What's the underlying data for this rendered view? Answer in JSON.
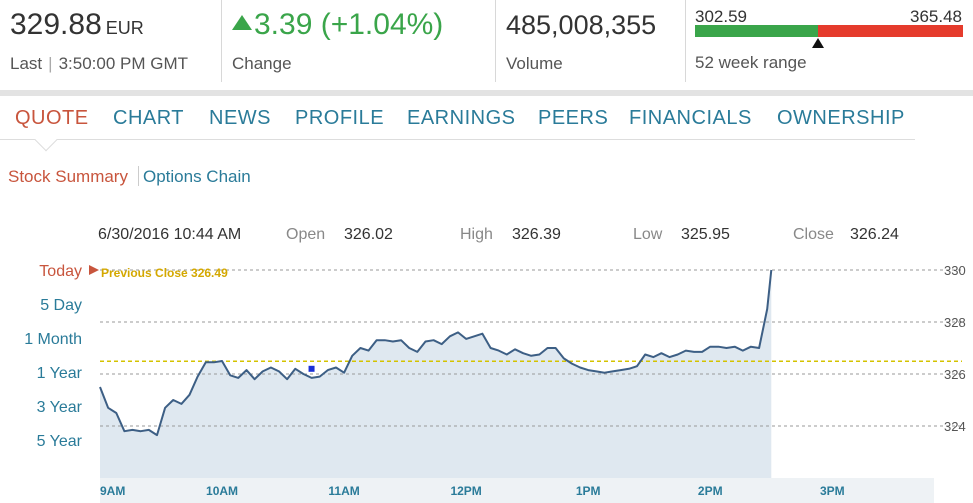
{
  "quote": {
    "price": "329.88",
    "currency": "EUR",
    "last_label": "Last",
    "time": "3:50:00 PM GMT",
    "change": "3.39 (+1.04%)",
    "change_label": "Change",
    "volume": "485,008,355",
    "volume_label": "Volume",
    "range_low": "302.59",
    "range_high": "365.48",
    "range_label": "52 week range",
    "range_position": 0.46,
    "colors": {
      "up": "#3aa54a",
      "down": "#e53b2c",
      "accent": "#c8553d",
      "link": "#2a7b99"
    }
  },
  "nav": {
    "tabs": [
      {
        "label": "QUOTE",
        "active": true
      },
      {
        "label": "CHART"
      },
      {
        "label": "NEWS"
      },
      {
        "label": "PROFILE"
      },
      {
        "label": "EARNINGS"
      },
      {
        "label": "PEERS"
      },
      {
        "label": "FINANCIALS"
      },
      {
        "label": "OWNERSHIP"
      }
    ],
    "subtabs": {
      "active": "Stock Summary",
      "other": "Options Chain"
    }
  },
  "info": {
    "datetime": "6/30/2016 10:44 AM",
    "open_label": "Open",
    "open": "326.02",
    "high_label": "High",
    "high": "326.39",
    "low_label": "Low",
    "low": "325.95",
    "close_label": "Close",
    "close": "326.24"
  },
  "ranges": [
    {
      "label": "Today",
      "active": true
    },
    {
      "label": "5 Day"
    },
    {
      "label": "1 Month"
    },
    {
      "label": "1 Year"
    },
    {
      "label": "3 Year"
    },
    {
      "label": "5 Year"
    }
  ],
  "chart_data": {
    "type": "area",
    "annotation": "Previous Close 326.49",
    "previous_close": 326.49,
    "line_color": "#3d5f85",
    "fill_color": "#dfe8f0",
    "prev_close_color": "#d4c300",
    "ylim": [
      322,
      330
    ],
    "yticks": [
      324,
      326,
      328,
      330
    ],
    "xticks": [
      {
        "label": "9AM",
        "t": 540
      },
      {
        "label": "10AM",
        "t": 600
      },
      {
        "label": "11AM",
        "t": 660
      },
      {
        "label": "12PM",
        "t": 720
      },
      {
        "label": "1PM",
        "t": 780
      },
      {
        "label": "2PM",
        "t": 840
      },
      {
        "label": "3PM",
        "t": 900
      }
    ],
    "xlim": [
      540,
      950
    ],
    "grid": true,
    "marker": {
      "t": 644,
      "y": 326.2
    },
    "series": [
      {
        "points": [
          [
            540,
            325.5
          ],
          [
            544,
            324.7
          ],
          [
            548,
            324.5
          ],
          [
            552,
            323.8
          ],
          [
            556,
            323.85
          ],
          [
            560,
            323.8
          ],
          [
            564,
            323.85
          ],
          [
            568,
            323.65
          ],
          [
            572,
            324.7
          ],
          [
            576,
            325.0
          ],
          [
            580,
            324.85
          ],
          [
            584,
            325.2
          ],
          [
            588,
            325.9
          ],
          [
            592,
            326.45
          ],
          [
            596,
            326.45
          ],
          [
            600,
            326.5
          ],
          [
            604,
            325.95
          ],
          [
            608,
            325.85
          ],
          [
            612,
            326.15
          ],
          [
            616,
            325.8
          ],
          [
            620,
            326.1
          ],
          [
            624,
            326.25
          ],
          [
            628,
            326.1
          ],
          [
            632,
            325.8
          ],
          [
            636,
            326.2
          ],
          [
            640,
            326.0
          ],
          [
            644,
            325.85
          ],
          [
            648,
            325.9
          ],
          [
            652,
            326.15
          ],
          [
            656,
            326.25
          ],
          [
            660,
            326.05
          ],
          [
            664,
            326.7
          ],
          [
            668,
            327.0
          ],
          [
            672,
            326.9
          ],
          [
            676,
            327.3
          ],
          [
            680,
            327.3
          ],
          [
            684,
            327.25
          ],
          [
            688,
            327.3
          ],
          [
            692,
            327.0
          ],
          [
            696,
            326.85
          ],
          [
            700,
            327.25
          ],
          [
            704,
            327.3
          ],
          [
            708,
            327.15
          ],
          [
            712,
            327.45
          ],
          [
            716,
            327.6
          ],
          [
            720,
            327.35
          ],
          [
            724,
            327.45
          ],
          [
            728,
            327.55
          ],
          [
            732,
            327.0
          ],
          [
            736,
            326.9
          ],
          [
            740,
            326.75
          ],
          [
            744,
            326.95
          ],
          [
            748,
            326.8
          ],
          [
            752,
            326.7
          ],
          [
            756,
            326.75
          ],
          [
            760,
            327.0
          ],
          [
            764,
            327.0
          ],
          [
            768,
            326.6
          ],
          [
            772,
            326.4
          ],
          [
            776,
            326.25
          ],
          [
            780,
            326.15
          ],
          [
            784,
            326.1
          ],
          [
            788,
            326.05
          ],
          [
            792,
            326.1
          ],
          [
            796,
            326.15
          ],
          [
            800,
            326.2
          ],
          [
            804,
            326.3
          ],
          [
            808,
            326.75
          ],
          [
            812,
            326.65
          ],
          [
            816,
            326.8
          ],
          [
            820,
            326.65
          ],
          [
            824,
            326.75
          ],
          [
            828,
            326.9
          ],
          [
            832,
            326.85
          ],
          [
            836,
            326.85
          ],
          [
            840,
            327.05
          ],
          [
            844,
            327.05
          ],
          [
            848,
            327.0
          ],
          [
            852,
            327.05
          ],
          [
            856,
            326.9
          ],
          [
            860,
            327.05
          ],
          [
            864,
            327.0
          ],
          [
            868,
            328.5
          ],
          [
            870,
            330.0
          ]
        ]
      }
    ]
  }
}
